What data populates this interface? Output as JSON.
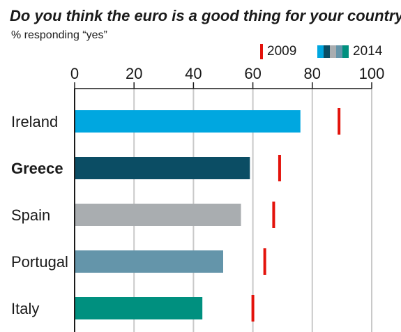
{
  "chart_data": {
    "type": "bar",
    "orientation": "horizontal",
    "title": "Do you think the euro is a good thing for your country?",
    "subtitle": "% responding “yes”",
    "categories": [
      "Ireland",
      "Greece",
      "Spain",
      "Portugal",
      "Italy"
    ],
    "highlighted_category": "Greece",
    "x_ticks": [
      0,
      20,
      40,
      60,
      80,
      100
    ],
    "xlim": [
      0,
      100
    ],
    "grid": true,
    "legend_position": "top-right",
    "series": [
      {
        "name": "2014",
        "mark": "bar",
        "values": [
          76,
          59,
          56,
          50,
          43
        ],
        "colors": [
          "#00a7e0",
          "#0b4d64",
          "#a9adb0",
          "#6495aa",
          "#00907f"
        ]
      },
      {
        "name": "2009",
        "mark": "tick",
        "color": "#e3120b",
        "values": [
          89,
          69,
          67,
          64,
          60
        ]
      }
    ]
  }
}
